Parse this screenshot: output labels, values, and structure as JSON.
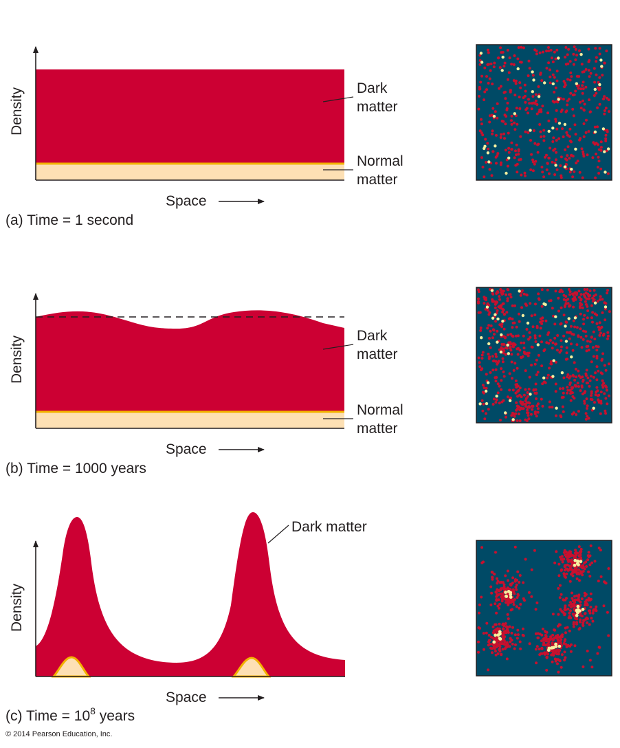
{
  "colors": {
    "dark_matter": "#cc0033",
    "normal_matter_fill": "#fde0b4",
    "normal_matter_edge": "#f2b200",
    "panel_bg": "#004a66",
    "normal_dot": "#f6f0a0",
    "dark_dot": "#c8102e"
  },
  "panels": [
    {
      "id": "a",
      "ylabel": "Density",
      "xlabel": "Space",
      "caption_prefix": "(a) Time = 1 second",
      "labels": {
        "dark": [
          "Dark",
          "matter"
        ],
        "normal": [
          "Normal",
          "matter"
        ]
      }
    },
    {
      "id": "b",
      "ylabel": "Density",
      "xlabel": "Space",
      "caption_prefix": "(b) Time = 1000 years",
      "labels": {
        "dark": [
          "Dark",
          "matter"
        ],
        "normal": [
          "Normal",
          "matter"
        ]
      }
    },
    {
      "id": "c",
      "ylabel": "Density",
      "xlabel": "Space",
      "caption_prefix": "(c) Time = 10",
      "caption_exp": "8",
      "caption_suffix": " years",
      "labels": {
        "dark": [
          "Dark matter"
        ]
      }
    }
  ],
  "copyright": "© 2014 Pearson Education, Inc."
}
